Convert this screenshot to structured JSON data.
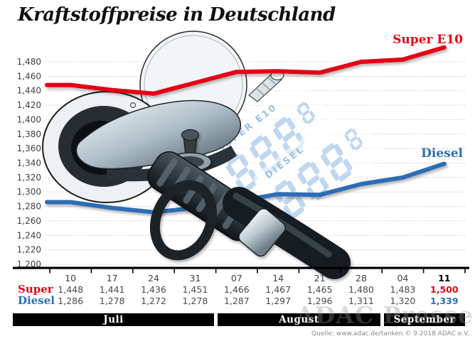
{
  "title": "Kraftstoffpreise in Deutschland",
  "series_labels": {
    "super": "Super E10",
    "diesel": "Diesel"
  },
  "display": {
    "super_label": "SUPER E10",
    "diesel_label": "DIESEL",
    "digits": "888",
    "small_digit": "8"
  },
  "colors": {
    "super": "#e30613",
    "diesel": "#2e6db4",
    "grid": "#c6c6c6",
    "axis": "#000000",
    "display_blue": "#b5d1ed",
    "display_label_blue": "#9cc0e4",
    "value_text": "#4a4a4a",
    "tick_text": "#3f3f3f"
  },
  "chart_data": {
    "type": "line",
    "title": "Kraftstoffpreise in Deutschland",
    "categories": [
      "10",
      "17",
      "24",
      "31",
      "07",
      "14",
      "21",
      "28",
      "04",
      "11"
    ],
    "months": [
      {
        "label": "Juli",
        "span": 4
      },
      {
        "label": "August",
        "span": 4
      },
      {
        "label": "September",
        "span": 2
      }
    ],
    "series": [
      {
        "name": "Super",
        "label": "Super E10",
        "color": "#e30613",
        "values": [
          1.448,
          1.441,
          1.436,
          1.451,
          1.466,
          1.467,
          1.465,
          1.48,
          1.483,
          1.5
        ]
      },
      {
        "name": "Diesel",
        "label": "Diesel",
        "color": "#2e6db4",
        "values": [
          1.286,
          1.278,
          1.272,
          1.278,
          1.287,
          1.297,
          1.296,
          1.311,
          1.32,
          1.339
        ]
      }
    ],
    "ylim": [
      1.2,
      1.48
    ],
    "ytick_step": 0.02,
    "y_tick_labels": [
      "1,480",
      "1,460",
      "1,440",
      "1,420",
      "1,400",
      "1,380",
      "1,360",
      "1,340",
      "1,320",
      "1,300",
      "1,280",
      "1,260",
      "1,240",
      "1,220",
      "1,200"
    ],
    "grid": true,
    "legend_position": "inline-right"
  },
  "table": {
    "row_labels": [
      "Super",
      "Diesel"
    ],
    "highlight_last_column": true
  },
  "watermark": "ADAC Presse",
  "source": "Quelle: www.adac.de/tanken   © 9.2018   ADAC e.V."
}
